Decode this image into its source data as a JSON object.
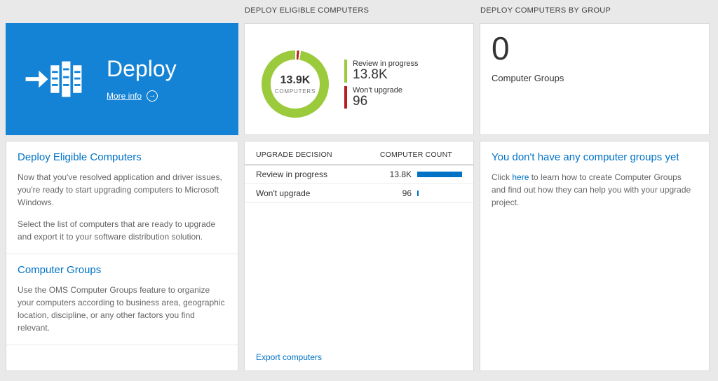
{
  "colors": {
    "tile_blue": "#1583d5",
    "accent_blue": "#0072c6",
    "green": "#9bca3c",
    "red": "#b81c22",
    "bar_blue": "#0072c6"
  },
  "icons": {
    "more_info_arrow": "→"
  },
  "column_headers": {
    "middle": "DEPLOY ELIGIBLE COMPUTERS",
    "right": "DEPLOY COMPUTERS BY GROUP"
  },
  "tile": {
    "title": "Deploy",
    "more_info_label": "More info"
  },
  "left_panel": {
    "section1": {
      "heading": "Deploy Eligible Computers",
      "p1": "Now that you've resolved application and driver issues, you're ready to start upgrading computers to Microsoft Windows.",
      "p2": "Select the list of computers that are ready to upgrade and export it to your software distribution solution."
    },
    "section2": {
      "heading": "Computer Groups",
      "p1": "Use the OMS Computer Groups feature to organize your computers according to business area, geographic location, discipline, or any other factors you find relevant."
    }
  },
  "donut": {
    "center_value": "13.9K",
    "center_label": "COMPUTERS",
    "values": {
      "review_in_progress": 13800,
      "wont_upgrade": 96
    },
    "legend": [
      {
        "label": "Review in progress",
        "value": "13.8K",
        "color": "#9bca3c"
      },
      {
        "label": "Won't upgrade",
        "value": "96",
        "color": "#b81c22"
      }
    ]
  },
  "table": {
    "col_decision": "UPGRADE DECISION",
    "col_count": "COMPUTER COUNT",
    "rows": [
      {
        "decision": "Review in progress",
        "count": "13.8K",
        "bar_pct": 100
      },
      {
        "decision": "Won't upgrade",
        "count": "96",
        "bar_pct": 2
      }
    ]
  },
  "export_link_label": "Export computers",
  "groups_panel": {
    "count": "0",
    "count_label": "Computer Groups",
    "empty_heading": "You don't have any computer groups yet",
    "text_before_link": "Click ",
    "link_text": "here",
    "text_after_link": " to learn how to create Computer Groups and find out how they can help you with your upgrade project."
  }
}
